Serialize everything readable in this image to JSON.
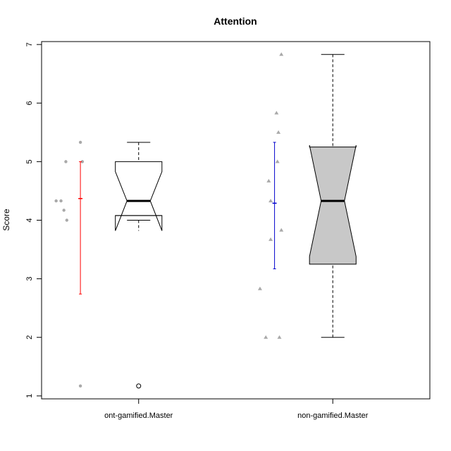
{
  "chart_data": {
    "type": "boxplot",
    "title": "Attention",
    "xlabel": "",
    "ylabel": "Score",
    "ylim": [
      0.95,
      7.05
    ],
    "yticks": [
      1,
      2,
      3,
      4,
      5,
      6,
      7
    ],
    "categories": [
      "ont-gamified.Master",
      "non-gamified.Master"
    ],
    "boxes": [
      {
        "category": "ont-gamified.Master",
        "fill": "#ffffff",
        "whisker_low": 4.0,
        "q1": 4.08,
        "median": 4.33,
        "q3": 5.0,
        "whisker_high": 5.33,
        "notch_low": 3.82,
        "notch_high": 4.83,
        "outliers": [
          1.17
        ]
      },
      {
        "category": "non-gamified.Master",
        "fill": "#c8c8c8",
        "whisker_low": 2.0,
        "q1": 3.25,
        "median": 4.33,
        "q3": 5.25,
        "whisker_high": 6.83,
        "notch_low": 3.38,
        "notch_high": 5.28,
        "outliers": []
      }
    ],
    "points": [
      {
        "category": "ont-gamified.Master",
        "shape": "circle",
        "color": "#a9a9a9",
        "values": [
          {
            "y": 4.33,
            "jitter": -0.25
          },
          {
            "y": 4.33,
            "jitter": -0.2
          },
          {
            "y": 5.0,
            "jitter": -0.15
          },
          {
            "y": 4.17,
            "jitter": -0.17
          },
          {
            "y": 4.0,
            "jitter": -0.14
          },
          {
            "y": 5.33,
            "jitter": 0.0
          },
          {
            "y": 5.0,
            "jitter": 0.02
          },
          {
            "y": 1.17,
            "jitter": 0.0
          }
        ]
      },
      {
        "category": "non-gamified.Master",
        "shape": "triangle",
        "color": "#a9a9a9",
        "values": [
          {
            "y": 6.83,
            "jitter": 0.07
          },
          {
            "y": 5.83,
            "jitter": 0.02
          },
          {
            "y": 5.5,
            "jitter": 0.04
          },
          {
            "y": 5.0,
            "jitter": 0.03
          },
          {
            "y": 4.67,
            "jitter": -0.06
          },
          {
            "y": 4.33,
            "jitter": -0.04
          },
          {
            "y": 3.83,
            "jitter": 0.07
          },
          {
            "y": 3.67,
            "jitter": -0.04
          },
          {
            "y": 2.83,
            "jitter": -0.15
          },
          {
            "y": 2.0,
            "jitter": -0.09
          },
          {
            "y": 2.0,
            "jitter": 0.05
          }
        ]
      }
    ],
    "error_bars": [
      {
        "category": "ont-gamified.Master",
        "color": "#ff0000",
        "mean": 4.37,
        "low": 2.74,
        "high": 5.0
      },
      {
        "category": "non-gamified.Master",
        "color": "#0000cd",
        "mean": 4.29,
        "low": 3.17,
        "high": 5.33
      }
    ]
  }
}
